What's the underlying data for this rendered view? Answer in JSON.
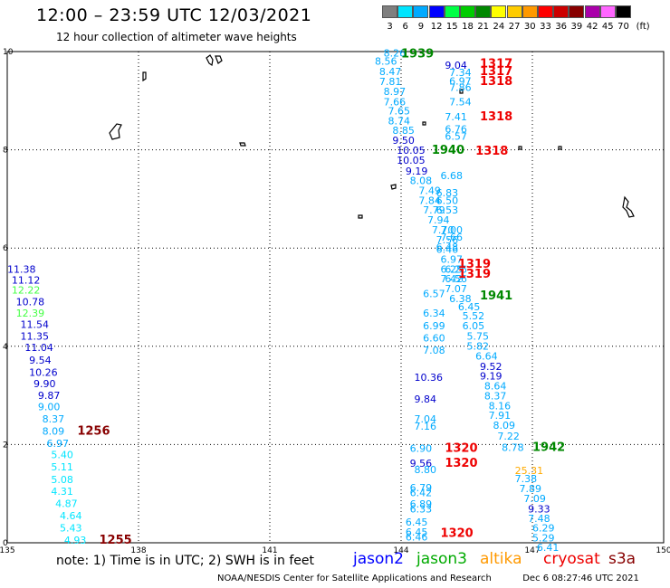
{
  "header": {
    "title": "12:00 – 23:59 UTC 12/03/2021",
    "subtitle": "12 hour collection of altimeter wave heights"
  },
  "legend": {
    "unit": "(ft)",
    "bins": [
      {
        "label": "3",
        "color": "#7f7f7f"
      },
      {
        "label": "6",
        "color": "#00e5ff"
      },
      {
        "label": "9",
        "color": "#00aaff"
      },
      {
        "label": "12",
        "color": "#0000ff"
      },
      {
        "label": "15",
        "color": "#00ff44"
      },
      {
        "label": "18",
        "color": "#00cc00"
      },
      {
        "label": "21",
        "color": "#008800"
      },
      {
        "label": "24",
        "color": "#ffff00"
      },
      {
        "label": "27",
        "color": "#ffcc00"
      },
      {
        "label": "30",
        "color": "#ff9900"
      },
      {
        "label": "33",
        "color": "#ff0000"
      },
      {
        "label": "36",
        "color": "#cc0000"
      },
      {
        "label": "39",
        "color": "#880000"
      },
      {
        "label": "42",
        "color": "#aa00aa"
      },
      {
        "label": "45",
        "color": "#ff66ff"
      },
      {
        "label": "70",
        "color": "#000000"
      }
    ]
  },
  "axes": {
    "lon_ticks": [
      {
        "v": 135,
        "label": "135"
      },
      {
        "v": 138,
        "label": "138"
      },
      {
        "v": 141,
        "label": "141"
      },
      {
        "v": 144,
        "label": "144"
      },
      {
        "v": 147,
        "label": "147"
      },
      {
        "v": 150,
        "label": "150"
      }
    ],
    "lat_ticks": [
      {
        "v": 0,
        "label": "0"
      },
      {
        "v": 2,
        "label": "2"
      },
      {
        "v": 4,
        "label": "4"
      },
      {
        "v": 6,
        "label": "6"
      },
      {
        "v": 8,
        "label": "8"
      },
      {
        "v": 10,
        "label": "10"
      }
    ]
  },
  "observations": [
    {
      "lon": 143.6,
      "lat": 9.9,
      "t": "8.26",
      "c": "#00aaff"
    },
    {
      "lon": 143.4,
      "lat": 9.73,
      "t": "8.56",
      "c": "#00aaff"
    },
    {
      "lon": 143.5,
      "lat": 9.52,
      "t": "8.47",
      "c": "#00aaff"
    },
    {
      "lon": 143.5,
      "lat": 9.32,
      "t": "7.81",
      "c": "#00aaff"
    },
    {
      "lon": 143.6,
      "lat": 9.12,
      "t": "8.97",
      "c": "#00aaff"
    },
    {
      "lon": 143.6,
      "lat": 8.9,
      "t": "7.66",
      "c": "#00aaff"
    },
    {
      "lon": 143.7,
      "lat": 8.72,
      "t": "7.65",
      "c": "#00aaff"
    },
    {
      "lon": 143.7,
      "lat": 8.52,
      "t": "8.74",
      "c": "#00aaff"
    },
    {
      "lon": 143.8,
      "lat": 8.32,
      "t": "8.85",
      "c": "#00aaff"
    },
    {
      "lon": 143.8,
      "lat": 8.12,
      "t": "9.50",
      "c": "#0000cc"
    },
    {
      "lon": 143.9,
      "lat": 7.92,
      "t": "10.05",
      "c": "#0000cc"
    },
    {
      "lon": 143.9,
      "lat": 7.72,
      "t": "10.05",
      "c": "#0000cc"
    },
    {
      "lon": 144.1,
      "lat": 7.5,
      "t": "9.19",
      "c": "#0000cc"
    },
    {
      "lon": 144.2,
      "lat": 7.3,
      "t": "8.08",
      "c": "#00aaff"
    },
    {
      "lon": 144.4,
      "lat": 7.1,
      "t": "7.49",
      "c": "#00aaff"
    },
    {
      "lon": 144.4,
      "lat": 6.9,
      "t": "7.84",
      "c": "#00aaff"
    },
    {
      "lon": 144.5,
      "lat": 6.7,
      "t": "7.79",
      "c": "#00aaff"
    },
    {
      "lon": 144.6,
      "lat": 6.5,
      "t": "7.94",
      "c": "#00aaff"
    },
    {
      "lon": 144.7,
      "lat": 6.3,
      "t": "7.70",
      "c": "#00aaff"
    },
    {
      "lon": 144.8,
      "lat": 6.1,
      "t": "7.56",
      "c": "#00aaff"
    },
    {
      "lon": 144.8,
      "lat": 5.9,
      "t": "6.46",
      "c": "#00aaff"
    },
    {
      "lon": 144.9,
      "lat": 5.7,
      "t": "6.97",
      "c": "#00aaff"
    },
    {
      "lon": 144.9,
      "lat": 5.5,
      "t": "6.25",
      "c": "#00aaff"
    },
    {
      "lon": 144.9,
      "lat": 5.3,
      "t": "7.42",
      "c": "#00aaff"
    },
    {
      "lon": 144.5,
      "lat": 5.0,
      "t": "6.57",
      "c": "#00aaff"
    },
    {
      "lon": 144.5,
      "lat": 4.6,
      "t": "6.34",
      "c": "#00aaff"
    },
    {
      "lon": 144.5,
      "lat": 4.35,
      "t": "6.99",
      "c": "#00aaff"
    },
    {
      "lon": 144.5,
      "lat": 4.1,
      "t": "6.60",
      "c": "#00aaff"
    },
    {
      "lon": 144.5,
      "lat": 3.85,
      "t": "7.08",
      "c": "#00aaff"
    },
    {
      "lon": 144.3,
      "lat": 3.3,
      "t": "10.36",
      "c": "#0000cc"
    },
    {
      "lon": 144.3,
      "lat": 2.85,
      "t": "9.84",
      "c": "#0000cc"
    },
    {
      "lon": 144.3,
      "lat": 2.45,
      "t": "7.04",
      "c": "#00aaff"
    },
    {
      "lon": 144.3,
      "lat": 2.3,
      "t": "7.16",
      "c": "#00aaff"
    },
    {
      "lon": 144.2,
      "lat": 1.85,
      "t": "6.90",
      "c": "#00aaff"
    },
    {
      "lon": 144.2,
      "lat": 1.55,
      "t": "9.56",
      "c": "#0000cc"
    },
    {
      "lon": 144.3,
      "lat": 1.42,
      "t": "8.80",
      "c": "#00aaff"
    },
    {
      "lon": 144.2,
      "lat": 1.05,
      "t": "6.79",
      "c": "#00aaff"
    },
    {
      "lon": 144.2,
      "lat": 0.95,
      "t": "6.42",
      "c": "#00aaff"
    },
    {
      "lon": 144.2,
      "lat": 0.72,
      "t": "6.89",
      "c": "#00aaff"
    },
    {
      "lon": 144.2,
      "lat": 0.62,
      "t": "6.33",
      "c": "#00aaff"
    },
    {
      "lon": 144.1,
      "lat": 0.35,
      "t": "6.45",
      "c": "#00aaff"
    },
    {
      "lon": 144.1,
      "lat": 0.15,
      "t": "6.45",
      "c": "#00aaff"
    },
    {
      "lon": 144.1,
      "lat": 0.05,
      "t": "6.46",
      "c": "#00aaff"
    },
    {
      "lon": 145.0,
      "lat": 9.65,
      "t": "9.04",
      "c": "#0000cc"
    },
    {
      "lon": 145.1,
      "lat": 9.5,
      "t": "7.34",
      "c": "#00aaff"
    },
    {
      "lon": 145.1,
      "lat": 9.33,
      "t": "6.97",
      "c": "#00aaff"
    },
    {
      "lon": 145.1,
      "lat": 9.2,
      "t": "7.86",
      "c": "#00aaff"
    },
    {
      "lon": 145.1,
      "lat": 8.9,
      "t": "7.54",
      "c": "#00aaff"
    },
    {
      "lon": 145.0,
      "lat": 8.6,
      "t": "7.41",
      "c": "#00aaff"
    },
    {
      "lon": 145.0,
      "lat": 8.35,
      "t": "6.76",
      "c": "#00aaff"
    },
    {
      "lon": 145.0,
      "lat": 8.2,
      "t": "6.57",
      "c": "#00aaff"
    },
    {
      "lon": 144.9,
      "lat": 7.4,
      "t": "6.68",
      "c": "#00aaff"
    },
    {
      "lon": 144.8,
      "lat": 7.05,
      "t": "6.83",
      "c": "#00aaff"
    },
    {
      "lon": 144.8,
      "lat": 6.9,
      "t": "6.50",
      "c": "#00aaff"
    },
    {
      "lon": 144.8,
      "lat": 6.7,
      "t": "6.53",
      "c": "#00aaff"
    },
    {
      "lon": 144.9,
      "lat": 6.3,
      "t": "7.00",
      "c": "#00aaff"
    },
    {
      "lon": 144.9,
      "lat": 6.15,
      "t": "7.66",
      "c": "#00aaff"
    },
    {
      "lon": 144.8,
      "lat": 5.95,
      "t": "6.48",
      "c": "#00aaff"
    },
    {
      "lon": 145.0,
      "lat": 5.5,
      "t": "6.26",
      "c": "#00aaff"
    },
    {
      "lon": 145.0,
      "lat": 5.3,
      "t": "6.56",
      "c": "#00aaff"
    },
    {
      "lon": 145.0,
      "lat": 5.1,
      "t": "7.07",
      "c": "#00aaff"
    },
    {
      "lon": 145.1,
      "lat": 4.9,
      "t": "6.38",
      "c": "#00aaff"
    },
    {
      "lon": 145.3,
      "lat": 4.73,
      "t": "6.45",
      "c": "#00aaff"
    },
    {
      "lon": 145.4,
      "lat": 4.55,
      "t": "5.52",
      "c": "#00aaff"
    },
    {
      "lon": 145.4,
      "lat": 4.35,
      "t": "6.05",
      "c": "#00aaff"
    },
    {
      "lon": 145.5,
      "lat": 4.13,
      "t": "5.75",
      "c": "#00aaff"
    },
    {
      "lon": 145.5,
      "lat": 3.93,
      "t": "5.82",
      "c": "#00aaff"
    },
    {
      "lon": 145.7,
      "lat": 3.73,
      "t": "6.64",
      "c": "#00aaff"
    },
    {
      "lon": 145.8,
      "lat": 3.52,
      "t": "9.52",
      "c": "#0000cc"
    },
    {
      "lon": 145.8,
      "lat": 3.32,
      "t": "9.19",
      "c": "#0000cc"
    },
    {
      "lon": 145.9,
      "lat": 3.12,
      "t": "8.64",
      "c": "#00aaff"
    },
    {
      "lon": 145.9,
      "lat": 2.92,
      "t": "8.37",
      "c": "#00aaff"
    },
    {
      "lon": 146.0,
      "lat": 2.72,
      "t": "8.16",
      "c": "#00aaff"
    },
    {
      "lon": 146.0,
      "lat": 2.52,
      "t": "7.91",
      "c": "#00aaff"
    },
    {
      "lon": 146.1,
      "lat": 2.32,
      "t": "8.09",
      "c": "#00aaff"
    },
    {
      "lon": 146.2,
      "lat": 2.1,
      "t": "7.22",
      "c": "#00aaff"
    },
    {
      "lon": 146.3,
      "lat": 1.87,
      "t": "8.78",
      "c": "#00aaff"
    },
    {
      "lon": 146.6,
      "lat": 1.4,
      "t": "25.31",
      "c": "#ffaa00"
    },
    {
      "lon": 146.6,
      "lat": 1.23,
      "t": "7.38",
      "c": "#00aaff"
    },
    {
      "lon": 146.7,
      "lat": 1.03,
      "t": "7.89",
      "c": "#00aaff"
    },
    {
      "lon": 146.8,
      "lat": 0.83,
      "t": "7.09",
      "c": "#00aaff"
    },
    {
      "lon": 146.9,
      "lat": 0.62,
      "t": "9.33",
      "c": "#0000cc"
    },
    {
      "lon": 146.9,
      "lat": 0.42,
      "t": "7.48",
      "c": "#00aaff"
    },
    {
      "lon": 147.0,
      "lat": 0.23,
      "t": "6.29",
      "c": "#00aaff"
    },
    {
      "lon": 147.0,
      "lat": 0.03,
      "t": "5.29",
      "c": "#00aaff"
    },
    {
      "lon": 147.1,
      "lat": -0.17,
      "t": "6.41",
      "c": "#00aaff"
    },
    {
      "lon": 135.0,
      "lat": 5.5,
      "t": "11.38",
      "c": "#0000cc"
    },
    {
      "lon": 135.1,
      "lat": 5.28,
      "t": "11.12",
      "c": "#0000cc"
    },
    {
      "lon": 135.1,
      "lat": 5.07,
      "t": "12.22",
      "c": "#44ff44"
    },
    {
      "lon": 135.2,
      "lat": 4.83,
      "t": "10.78",
      "c": "#0000cc"
    },
    {
      "lon": 135.2,
      "lat": 4.6,
      "t": "12.39",
      "c": "#44ff44"
    },
    {
      "lon": 135.3,
      "lat": 4.37,
      "t": "11.54",
      "c": "#0000cc"
    },
    {
      "lon": 135.3,
      "lat": 4.13,
      "t": "11.35",
      "c": "#0000cc"
    },
    {
      "lon": 135.4,
      "lat": 3.9,
      "t": "11.04",
      "c": "#0000cc"
    },
    {
      "lon": 135.5,
      "lat": 3.65,
      "t": "9.54",
      "c": "#0000cc"
    },
    {
      "lon": 135.5,
      "lat": 3.4,
      "t": "10.26",
      "c": "#0000cc"
    },
    {
      "lon": 135.6,
      "lat": 3.17,
      "t": "9.90",
      "c": "#0000cc"
    },
    {
      "lon": 135.7,
      "lat": 2.93,
      "t": "9.87",
      "c": "#0000cc"
    },
    {
      "lon": 135.7,
      "lat": 2.7,
      "t": "9.00",
      "c": "#00aaff"
    },
    {
      "lon": 135.8,
      "lat": 2.45,
      "t": "8.37",
      "c": "#00aaff"
    },
    {
      "lon": 135.8,
      "lat": 2.2,
      "t": "8.09",
      "c": "#00aaff"
    },
    {
      "lon": 135.9,
      "lat": 1.95,
      "t": "6.97",
      "c": "#00aaff"
    },
    {
      "lon": 136.0,
      "lat": 1.72,
      "t": "5.40",
      "c": "#00e5ff"
    },
    {
      "lon": 136.0,
      "lat": 1.47,
      "t": "5.11",
      "c": "#00e5ff"
    },
    {
      "lon": 136.0,
      "lat": 1.22,
      "t": "5.08",
      "c": "#00e5ff"
    },
    {
      "lon": 136.0,
      "lat": 0.98,
      "t": "4.31",
      "c": "#00e5ff"
    },
    {
      "lon": 136.1,
      "lat": 0.73,
      "t": "4.87",
      "c": "#00e5ff"
    },
    {
      "lon": 136.2,
      "lat": 0.48,
      "t": "4.64",
      "c": "#00e5ff"
    },
    {
      "lon": 136.2,
      "lat": 0.23,
      "t": "5.43",
      "c": "#00e5ff"
    },
    {
      "lon": 136.3,
      "lat": -0.02,
      "t": "4.93",
      "c": "#00e5ff"
    }
  ],
  "passes": [
    {
      "lon": 144.0,
      "lat": 9.88,
      "t": "1939",
      "c": "#008800"
    },
    {
      "lon": 144.7,
      "lat": 7.92,
      "t": "1940",
      "c": "#008800"
    },
    {
      "lon": 145.8,
      "lat": 4.95,
      "t": "1941",
      "c": "#008800"
    },
    {
      "lon": 147.0,
      "lat": 1.87,
      "t": "1942",
      "c": "#008800"
    },
    {
      "lon": 145.8,
      "lat": 9.68,
      "t": "1317",
      "c": "#ee0000"
    },
    {
      "lon": 145.8,
      "lat": 9.52,
      "t": "1317",
      "c": "#ee0000"
    },
    {
      "lon": 145.8,
      "lat": 9.32,
      "t": "1318",
      "c": "#ee0000"
    },
    {
      "lon": 145.8,
      "lat": 8.6,
      "t": "1318",
      "c": "#ee0000"
    },
    {
      "lon": 145.7,
      "lat": 7.9,
      "t": "1318",
      "c": "#ee0000"
    },
    {
      "lon": 145.3,
      "lat": 5.6,
      "t": "1319",
      "c": "#ee0000"
    },
    {
      "lon": 145.3,
      "lat": 5.4,
      "t": "1319",
      "c": "#ee0000"
    },
    {
      "lon": 145.0,
      "lat": 1.85,
      "t": "1320",
      "c": "#ee0000"
    },
    {
      "lon": 145.0,
      "lat": 1.55,
      "t": "1320",
      "c": "#ee0000"
    },
    {
      "lon": 144.9,
      "lat": 0.12,
      "t": "1320",
      "c": "#ee0000"
    },
    {
      "lon": 136.6,
      "lat": 2.2,
      "t": "1256",
      "c": "#880000"
    },
    {
      "lon": 137.1,
      "lat": -0.02,
      "t": "1255",
      "c": "#880000"
    }
  ],
  "footer": {
    "note": "note:  1) Time is in UTC; 2) SWH is in feet",
    "credit": "NOAA/NESDIS Center for Satellite Applications and Research",
    "timestamp": "Dec  6 08:27:46 UTC 2021",
    "satellites": [
      {
        "label": "jason2",
        "color": "#0000ff"
      },
      {
        "label": "jason3",
        "color": "#00aa00"
      },
      {
        "label": "altika",
        "color": "#ff9900"
      },
      {
        "label": "cryosat",
        "color": "#ee0000"
      },
      {
        "label": "s3a",
        "color": "#880000"
      }
    ]
  }
}
